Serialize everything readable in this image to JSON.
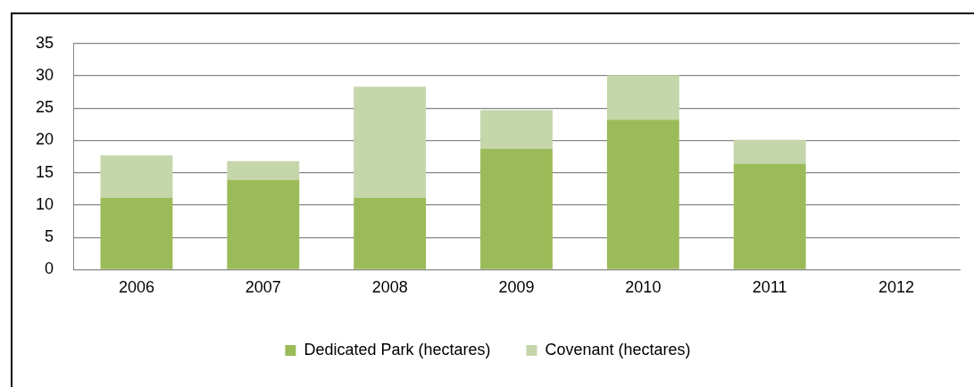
{
  "chart_data": {
    "type": "bar",
    "stacked": true,
    "categories": [
      "2006",
      "2007",
      "2008",
      "2009",
      "2010",
      "2011",
      "2012"
    ],
    "series": [
      {
        "name": "Dedicated Park (hectares)",
        "color": "#9bbb59",
        "values": [
          11.1,
          13.9,
          11.1,
          18.7,
          23.2,
          16.4,
          null
        ]
      },
      {
        "name": "Covenant (hectares)",
        "color": "#c4d6aa",
        "values": [
          6.6,
          2.9,
          17.2,
          6.0,
          6.9,
          3.7,
          null
        ]
      }
    ],
    "ylim": [
      0,
      35
    ],
    "yticks": [
      0,
      5,
      10,
      15,
      20,
      25,
      30,
      35
    ],
    "grid": "y",
    "legend": "bottom"
  }
}
